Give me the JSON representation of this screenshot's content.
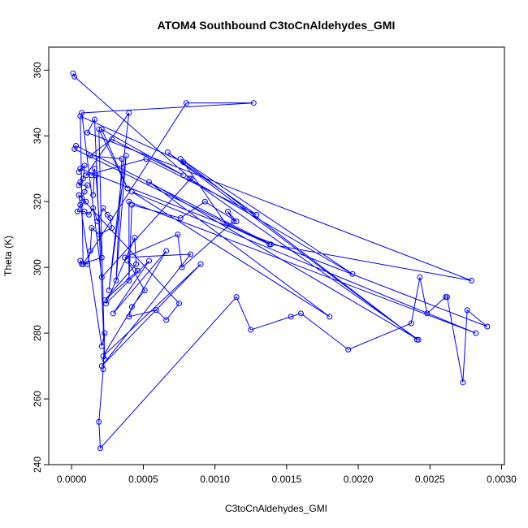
{
  "chart_data": {
    "type": "line",
    "title": "ATOM4 Southbound C3toCnAldehydes_GMI",
    "xlabel": "C3toCnAldehydes_GMI",
    "ylabel": "Theta (K)",
    "xlim": [
      -0.00016,
      0.00302
    ],
    "ylim": [
      240,
      367
    ],
    "x_ticks": [
      0,
      0.0005,
      0.001,
      0.0015,
      0.002,
      0.0025,
      0.003
    ],
    "x_tick_labels": [
      "0.0000",
      "0.0005",
      "0.0010",
      "0.0015",
      "0.0020",
      "0.0025",
      "0.0030"
    ],
    "y_ticks": [
      240,
      260,
      280,
      300,
      320,
      340,
      360
    ],
    "y_tick_labels": [
      "240",
      "260",
      "280",
      "300",
      "320",
      "340",
      "360"
    ],
    "grid": false,
    "series": [
      {
        "color": "#0000ff",
        "marker": "open-circle",
        "points": [
          {
            "x": 1e-05,
            "y": 359
          },
          {
            "x": 2e-05,
            "y": 358
          },
          {
            "x": 7e-05,
            "y": 347
          },
          {
            "x": 6e-05,
            "y": 346
          },
          {
            "x": 3e-05,
            "y": 337
          },
          {
            "x": 2e-05,
            "y": 336
          },
          {
            "x": 0.00011,
            "y": 341
          },
          {
            "x": 0.00016,
            "y": 345
          },
          {
            "x": 0.00019,
            "y": 342
          },
          {
            "x": 0.00021,
            "y": 342
          },
          {
            "x": 0.00028,
            "y": 339
          },
          {
            "x": 0.00035,
            "y": 333
          },
          {
            "x": 0.00038,
            "y": 334
          },
          {
            "x": 0.0004,
            "y": 347
          },
          {
            "x": 0.00052,
            "y": 333
          },
          {
            "x": 0.00067,
            "y": 335
          },
          {
            "x": 0.0008,
            "y": 350
          },
          {
            "x": 0.00127,
            "y": 350
          },
          {
            "x": 0.00076,
            "y": 333
          },
          {
            "x": 0.00078,
            "y": 332
          },
          {
            "x": 0.00078,
            "y": 328
          },
          {
            "x": 0.00082,
            "y": 327
          },
          {
            "x": 0.00083,
            "y": 327
          },
          {
            "x": 0.00054,
            "y": 326
          },
          {
            "x": 0.00039,
            "y": 324
          },
          {
            "x": 0.00042,
            "y": 323
          },
          {
            "x": 0.0004,
            "y": 320
          },
          {
            "x": 0.00042,
            "y": 319
          },
          {
            "x": 0.00093,
            "y": 320
          },
          {
            "x": 0.00109,
            "y": 317
          },
          {
            "x": 0.00115,
            "y": 314
          },
          {
            "x": 0.00113,
            "y": 314
          },
          {
            "x": 0.00108,
            "y": 313
          },
          {
            "x": 0.00129,
            "y": 316
          },
          {
            "x": 0.00138,
            "y": 307
          },
          {
            "x": 0.00139,
            "y": 307
          },
          {
            "x": 0.00076,
            "y": 315
          },
          {
            "x": 0.00074,
            "y": 310
          },
          {
            "x": 0.00077,
            "y": 300
          },
          {
            "x": 0.00083,
            "y": 304
          },
          {
            "x": 0.0009,
            "y": 301
          },
          {
            "x": 0.00066,
            "y": 305
          },
          {
            "x": 0.00054,
            "y": 302
          },
          {
            "x": 0.00044,
            "y": 309
          },
          {
            "x": 0.00045,
            "y": 301
          },
          {
            "x": 0.00046,
            "y": 299
          },
          {
            "x": 0.00039,
            "y": 302
          },
          {
            "x": 0.00037,
            "y": 303
          },
          {
            "x": 0.0004,
            "y": 296
          },
          {
            "x": 0.00042,
            "y": 288
          },
          {
            "x": 0.0004,
            "y": 285
          },
          {
            "x": 0.00051,
            "y": 293
          },
          {
            "x": 0.00059,
            "y": 287
          },
          {
            "x": 0.00066,
            "y": 284
          },
          {
            "x": 0.00075,
            "y": 289
          },
          {
            "x": 0.00031,
            "y": 296
          },
          {
            "x": 0.00029,
            "y": 286
          },
          {
            "x": 0.00026,
            "y": 293
          },
          {
            "x": 0.00024,
            "y": 289
          },
          {
            "x": 0.00023,
            "y": 290
          },
          {
            "x": 0.00021,
            "y": 297
          },
          {
            "x": 0.00021,
            "y": 276
          },
          {
            "x": 0.00023,
            "y": 280
          },
          {
            "x": 0.00022,
            "y": 273
          },
          {
            "x": 0.00023,
            "y": 272
          },
          {
            "x": 0.00021,
            "y": 270
          },
          {
            "x": 0.00022,
            "y": 269
          },
          {
            "x": 0.00019,
            "y": 253
          },
          {
            "x": 0.0002,
            "y": 245
          },
          {
            "x": 0.00115,
            "y": 291
          },
          {
            "x": 0.00125,
            "y": 281
          },
          {
            "x": 0.00153,
            "y": 285
          },
          {
            "x": 0.0016,
            "y": 286
          },
          {
            "x": 0.0018,
            "y": 285
          },
          {
            "x": 0.00193,
            "y": 275
          },
          {
            "x": 0.00196,
            "y": 298
          },
          {
            "x": 0.00237,
            "y": 283
          },
          {
            "x": 0.00241,
            "y": 278
          },
          {
            "x": 0.00242,
            "y": 278
          },
          {
            "x": 0.00243,
            "y": 297
          },
          {
            "x": 0.00248,
            "y": 286
          },
          {
            "x": 0.00261,
            "y": 291
          },
          {
            "x": 0.00262,
            "y": 291
          },
          {
            "x": 0.00273,
            "y": 265
          },
          {
            "x": 0.00276,
            "y": 287
          },
          {
            "x": 0.00279,
            "y": 296
          },
          {
            "x": 0.00282,
            "y": 280
          },
          {
            "x": 0.0029,
            "y": 282
          },
          {
            "x": 6e-05,
            "y": 330
          },
          {
            "x": 5e-05,
            "y": 329
          },
          {
            "x": 9e-05,
            "y": 331
          },
          {
            "x": 8e-05,
            "y": 327
          },
          {
            "x": 6e-05,
            "y": 326
          },
          {
            "x": 5e-05,
            "y": 325
          },
          {
            "x": 0.00011,
            "y": 325
          },
          {
            "x": 9e-05,
            "y": 323
          },
          {
            "x": 5e-05,
            "y": 322
          },
          {
            "x": 7e-05,
            "y": 321
          },
          {
            "x": 0.0001,
            "y": 320
          },
          {
            "x": 6e-05,
            "y": 319
          },
          {
            "x": 4e-05,
            "y": 317
          },
          {
            "x": 9e-05,
            "y": 317
          },
          {
            "x": 0.00012,
            "y": 316
          },
          {
            "x": 0.00015,
            "y": 318
          },
          {
            "x": 0.00018,
            "y": 314
          },
          {
            "x": 0.00022,
            "y": 318
          },
          {
            "x": 0.00025,
            "y": 316
          },
          {
            "x": 0.00027,
            "y": 315
          },
          {
            "x": 0.00028,
            "y": 312
          },
          {
            "x": 0.00019,
            "y": 310
          },
          {
            "x": 0.00014,
            "y": 312
          },
          {
            "x": 0.00013,
            "y": 305
          },
          {
            "x": 0.00011,
            "y": 301
          },
          {
            "x": 6e-05,
            "y": 302
          },
          {
            "x": 7e-05,
            "y": 301
          },
          {
            "x": 8e-05,
            "y": 301
          },
          {
            "x": 0.00021,
            "y": 303
          },
          {
            "x": 0.00017,
            "y": 328
          },
          {
            "x": 0.00013,
            "y": 334
          },
          {
            "x": 0.0001,
            "y": 328
          },
          {
            "x": 0.00014,
            "y": 328
          },
          {
            "x": 0.00016,
            "y": 330
          },
          {
            "x": 0.00015,
            "y": 322
          }
        ],
        "connected_path_order": [
          0,
          1,
          22,
          60,
          2,
          17,
          16,
          115,
          3,
          19,
          32,
          34,
          5,
          4,
          35,
          85,
          6,
          7,
          64,
          8,
          24,
          9,
          20,
          10,
          118,
          11,
          55,
          12,
          57,
          13,
          119,
          14,
          33,
          15,
          77,
          18,
          75,
          21,
          78,
          23,
          73,
          25,
          86,
          26,
          48,
          27,
          36,
          28,
          30,
          29,
          31,
          38,
          37,
          47,
          39,
          65,
          40,
          63,
          41,
          56,
          42,
          58,
          43,
          44,
          59,
          45,
          46,
          51,
          49,
          50,
          52,
          53,
          54,
          96,
          61,
          62,
          66,
          67,
          68,
          69,
          70,
          71,
          72,
          74,
          76,
          79,
          80,
          81,
          82,
          83,
          84,
          87,
          88,
          89,
          90,
          91,
          92,
          93,
          94,
          95,
          97,
          98,
          99,
          100,
          101,
          102,
          103,
          104,
          105,
          106,
          107,
          108,
          109,
          110,
          111,
          112,
          113,
          114,
          116,
          117,
          120,
          121,
          122
        ]
      }
    ]
  }
}
